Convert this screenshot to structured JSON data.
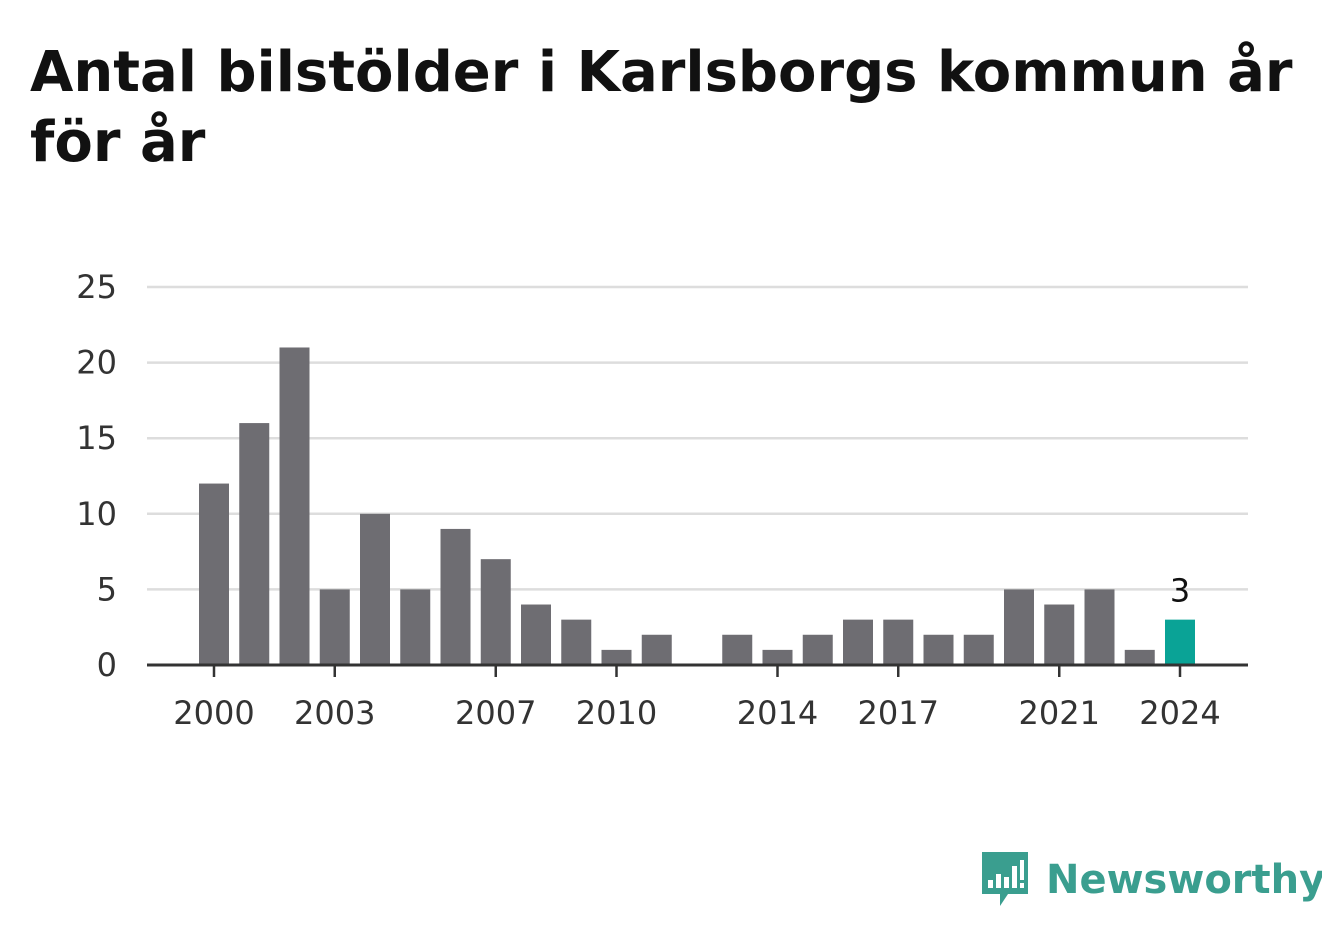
{
  "title": "Antal bilstölder i Karlsborgs kommun år för år",
  "brand": {
    "name": "Newsworthy",
    "logo_icon": "newsworthy-chat-bars-icon",
    "color": "#3a9e8f"
  },
  "colors": {
    "bar": "#6e6d72",
    "highlight": "#0aa396",
    "grid": "#dddddd",
    "axis": "#333333"
  },
  "chart_data": {
    "type": "bar",
    "title": "Antal bilstölder i Karlsborgs kommun år för år",
    "categories": [
      "2000",
      "2001",
      "2002",
      "2003",
      "2004",
      "2005",
      "2006",
      "2007",
      "2008",
      "2009",
      "2010",
      "2011",
      "2012",
      "2013",
      "2014",
      "2015",
      "2016",
      "2017",
      "2018",
      "2019",
      "2020",
      "2021",
      "2022",
      "2023",
      "2024"
    ],
    "values": [
      12,
      16,
      21,
      5,
      10,
      5,
      9,
      7,
      4,
      3,
      1,
      2,
      0,
      2,
      1,
      2,
      3,
      3,
      2,
      2,
      5,
      4,
      5,
      1,
      3
    ],
    "highlight": {
      "category": "2024",
      "value": 3,
      "label": "3"
    },
    "ylim": [
      0,
      25
    ],
    "yticks": [
      "0",
      "5",
      "10",
      "15",
      "20",
      "25"
    ],
    "xticks": [
      "2000",
      "2003",
      "2007",
      "2010",
      "2014",
      "2017",
      "2021",
      "2024"
    ],
    "xlabel": "",
    "ylabel": "",
    "grid": true,
    "legend": "none"
  }
}
